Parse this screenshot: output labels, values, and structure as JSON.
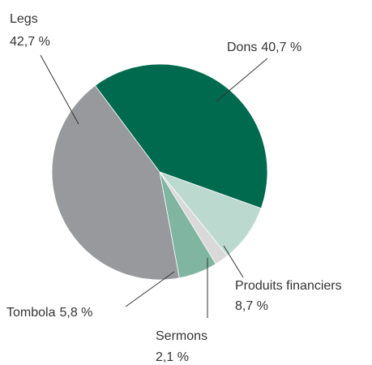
{
  "chart_data": {
    "type": "pie",
    "categories": [
      "Dons",
      "Produits financiers",
      "Sermons",
      "Tombola",
      "Legs"
    ],
    "values": [
      40.7,
      8.7,
      2.1,
      5.8,
      42.7
    ],
    "value_labels": [
      "40,7 %",
      "8,7 %",
      "2,1 %",
      "5,8 %",
      "42,7 %"
    ],
    "colors": [
      "#006a4e",
      "#bcd9cf",
      "#d9d9d9",
      "#80b5a2",
      "#97999c"
    ]
  }
}
